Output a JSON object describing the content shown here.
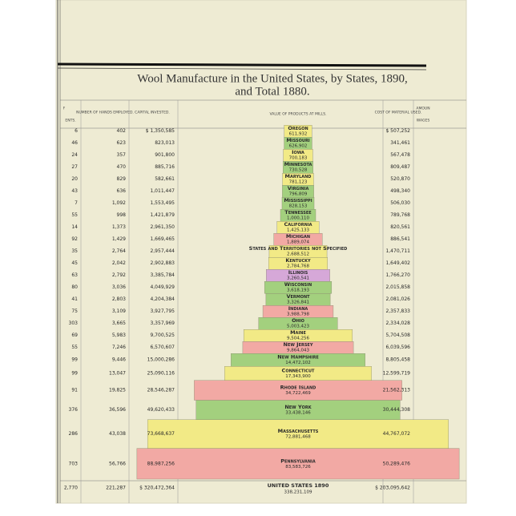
{
  "chart_data": {
    "type": "bar",
    "title_lines": [
      "Wool Manufacture in the United States, by States, 1890,",
      "and Total 1880."
    ],
    "categories": [
      "Oregon",
      "Missouri",
      "Iowa",
      "Minnesota",
      "Maryland",
      "Virginia",
      "Mississippi",
      "Tennessee",
      "California",
      "Michigan",
      "States and Territories not Specified",
      "Kentucky",
      "Illinois",
      "Wisconsin",
      "Vermont",
      "Indiana",
      "Ohio",
      "Maine",
      "New Jersey",
      "New Hampshire",
      "Connecticut",
      "Rhode Island",
      "New York",
      "Massachusetts",
      "Pennsylvania"
    ],
    "values": [
      611932,
      626902,
      700183,
      730528,
      781123,
      796809,
      828153,
      1000110,
      1425133,
      1889074,
      2688512,
      2784768,
      3260541,
      3618193,
      3326841,
      3988798,
      5003423,
      9504256,
      9864043,
      14472102,
      17343900,
      34722469,
      33438146,
      72881468,
      83583726
    ],
    "value_labels": [
      "611,932",
      "626,902",
      "700,183",
      "730,528",
      "781,123",
      "796,809",
      "828,153",
      "1,000,110",
      "1,425,133",
      "1,889,074",
      "2,688,512",
      "2,784,768",
      "3,260,541",
      "3,618,193",
      "3,326,841",
      "3,988,798",
      "5,003,423",
      "9,504,256",
      "9,864,043",
      "14,472,102",
      "17,343,900",
      "34,722,469",
      "33,438,146",
      "72,881,468",
      "83,583,726"
    ],
    "colors": [
      "#f2ea86",
      "#a3d07e",
      "#f2ea86",
      "#a3d07e",
      "#f2ea86",
      "#a3d07e",
      "#a3d07e",
      "#a3d07e",
      "#f2ea86",
      "#f2a9a4",
      "#f2ea86",
      "#f2ea86",
      "#d6a8d8",
      "#a3d07e",
      "#a3d07e",
      "#f2a9a4",
      "#a3d07e",
      "#f2ea86",
      "#f2a9a4",
      "#a3d07e",
      "#f2ea86",
      "#f2a9a4",
      "#a3d07e",
      "#f2ea86",
      "#f2a9a4"
    ]
  },
  "table": {
    "headers": [
      "F",
      "ENTS.",
      "NUMBER OF HANDS EMPLOYED.",
      "CAPITAL INVESTED.",
      "VALUE OF PRODUCTS AT MILLS.",
      "COST OF MATERIAL USED.",
      "AMOUN",
      "WAGES"
    ],
    "rows": [
      [
        "6",
        "402",
        "$ 1,350,585",
        "$ 507,252"
      ],
      [
        "46",
        "623",
        "823,013",
        "341,461"
      ],
      [
        "24",
        "357",
        "901,800",
        "567,478"
      ],
      [
        "27",
        "470",
        "885,716",
        "809,487"
      ],
      [
        "20",
        "829",
        "582,661",
        "520,870"
      ],
      [
        "43",
        "636",
        "1,011,447",
        "498,340"
      ],
      [
        "7",
        "1,092",
        "1,553,495",
        "506,030"
      ],
      [
        "55",
        "998",
        "1,421,879",
        "789,768"
      ],
      [
        "14",
        "1,373",
        "2,961,350",
        "820,561"
      ],
      [
        "92",
        "1,429",
        "1,669,465",
        "886,541"
      ],
      [
        "35",
        "2,764",
        "2,957,444",
        "1,470,711"
      ],
      [
        "45",
        "2,042",
        "2,902,883",
        "1,649,402"
      ],
      [
        "63",
        "2,792",
        "3,385,784",
        "1,766,270"
      ],
      [
        "80",
        "3,036",
        "4,049,929",
        "2,015,858"
      ],
      [
        "41",
        "2,803",
        "4,204,384",
        "2,081,026"
      ],
      [
        "75",
        "3,109",
        "3,927,795",
        "2,357,833"
      ],
      [
        "303",
        "3,665",
        "3,357,969",
        "2,334,028"
      ],
      [
        "69",
        "5,983",
        "9,700,525",
        "5,704,508"
      ],
      [
        "55",
        "7,246",
        "6,570,607",
        "6,039,596"
      ],
      [
        "99",
        "9,446",
        "15,000,286",
        "8,805,458"
      ],
      [
        "99",
        "13,047",
        "25,090,116",
        "12,599,719"
      ],
      [
        "91",
        "19,825",
        "28,546,287",
        "21,562,313"
      ],
      [
        "376",
        "36,596",
        "49,620,433",
        "30,444,308"
      ],
      [
        "286",
        "43,038",
        "73,668,637",
        "44,767,072"
      ],
      [
        "703",
        "56,766",
        "88,987,256",
        "50,289,476"
      ]
    ],
    "total_label": "UNITED STATES 1890",
    "total_value": "338,231,109",
    "total_row": [
      "2,770",
      "221,287",
      "$ 320,472,364",
      "$ 203,095,642"
    ]
  }
}
